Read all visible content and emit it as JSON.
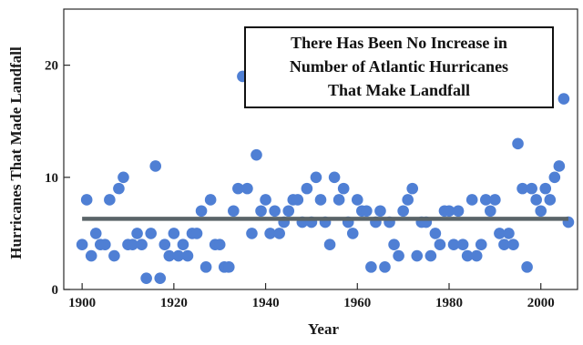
{
  "chart_data": {
    "type": "scatter",
    "title": "",
    "xlabel": "Year",
    "ylabel": "Hurricanes That Made Landfall",
    "xlim": [
      1896,
      2008
    ],
    "ylim": [
      0,
      25
    ],
    "xticks": [
      1900,
      1920,
      1940,
      1960,
      1980,
      2000
    ],
    "yticks": [
      0,
      10,
      20
    ],
    "grid": false,
    "annotation": {
      "lines": [
        "There Has Been No Increase in",
        "Number of Atlantic Hurricanes",
        "That Make Landfall"
      ]
    },
    "trend_line": {
      "x": [
        1900,
        2006
      ],
      "y": [
        6.3,
        6.3
      ]
    },
    "series": [
      {
        "points": [
          [
            1900,
            4
          ],
          [
            1901,
            8
          ],
          [
            1902,
            3
          ],
          [
            1903,
            5
          ],
          [
            1904,
            4
          ],
          [
            1905,
            4
          ],
          [
            1906,
            8
          ],
          [
            1907,
            3
          ],
          [
            1908,
            9
          ],
          [
            1909,
            10
          ],
          [
            1910,
            4
          ],
          [
            1911,
            4
          ],
          [
            1912,
            5
          ],
          [
            1913,
            4
          ],
          [
            1914,
            1
          ],
          [
            1915,
            5
          ],
          [
            1916,
            11
          ],
          [
            1917,
            1
          ],
          [
            1918,
            4
          ],
          [
            1919,
            3
          ],
          [
            1920,
            5
          ],
          [
            1921,
            3
          ],
          [
            1922,
            4
          ],
          [
            1923,
            3
          ],
          [
            1924,
            5
          ],
          [
            1925,
            5
          ],
          [
            1926,
            7
          ],
          [
            1927,
            2
          ],
          [
            1928,
            8
          ],
          [
            1929,
            4
          ],
          [
            1930,
            4
          ],
          [
            1931,
            2
          ],
          [
            1932,
            2
          ],
          [
            1933,
            7
          ],
          [
            1934,
            9
          ],
          [
            1935,
            19
          ],
          [
            1936,
            9
          ],
          [
            1937,
            5
          ],
          [
            1938,
            12
          ],
          [
            1939,
            7
          ],
          [
            1940,
            8
          ],
          [
            1941,
            5
          ],
          [
            1942,
            7
          ],
          [
            1943,
            5
          ],
          [
            1944,
            6
          ],
          [
            1945,
            7
          ],
          [
            1946,
            8
          ],
          [
            1947,
            8
          ],
          [
            1948,
            6
          ],
          [
            1949,
            9
          ],
          [
            1950,
            6
          ],
          [
            1951,
            10
          ],
          [
            1952,
            8
          ],
          [
            1953,
            6
          ],
          [
            1954,
            4
          ],
          [
            1955,
            10
          ],
          [
            1956,
            8
          ],
          [
            1957,
            9
          ],
          [
            1958,
            6
          ],
          [
            1959,
            5
          ],
          [
            1960,
            8
          ],
          [
            1961,
            7
          ],
          [
            1962,
            7
          ],
          [
            1963,
            2
          ],
          [
            1964,
            6
          ],
          [
            1965,
            7
          ],
          [
            1966,
            2
          ],
          [
            1967,
            6
          ],
          [
            1968,
            4
          ],
          [
            1969,
            3
          ],
          [
            1970,
            7
          ],
          [
            1971,
            8
          ],
          [
            1972,
            9
          ],
          [
            1973,
            3
          ],
          [
            1974,
            6
          ],
          [
            1975,
            6
          ],
          [
            1976,
            3
          ],
          [
            1977,
            5
          ],
          [
            1978,
            4
          ],
          [
            1979,
            7
          ],
          [
            1980,
            7
          ],
          [
            1981,
            4
          ],
          [
            1982,
            7
          ],
          [
            1983,
            4
          ],
          [
            1984,
            3
          ],
          [
            1985,
            8
          ],
          [
            1986,
            3
          ],
          [
            1987,
            4
          ],
          [
            1988,
            8
          ],
          [
            1989,
            7
          ],
          [
            1990,
            8
          ],
          [
            1991,
            5
          ],
          [
            1992,
            4
          ],
          [
            1993,
            5
          ],
          [
            1994,
            4
          ],
          [
            1995,
            13
          ],
          [
            1996,
            9
          ],
          [
            1997,
            2
          ],
          [
            1998,
            9
          ],
          [
            1999,
            8
          ],
          [
            2000,
            7
          ],
          [
            2001,
            9
          ],
          [
            2002,
            8
          ],
          [
            2003,
            10
          ],
          [
            2004,
            11
          ],
          [
            2005,
            17
          ],
          [
            2006,
            6
          ]
        ]
      }
    ],
    "colors": {
      "point": "#4f7fd4",
      "trend_line": "#5a6468",
      "axis": "#2a2a2a",
      "ylabel": "#2d2d6b"
    }
  }
}
